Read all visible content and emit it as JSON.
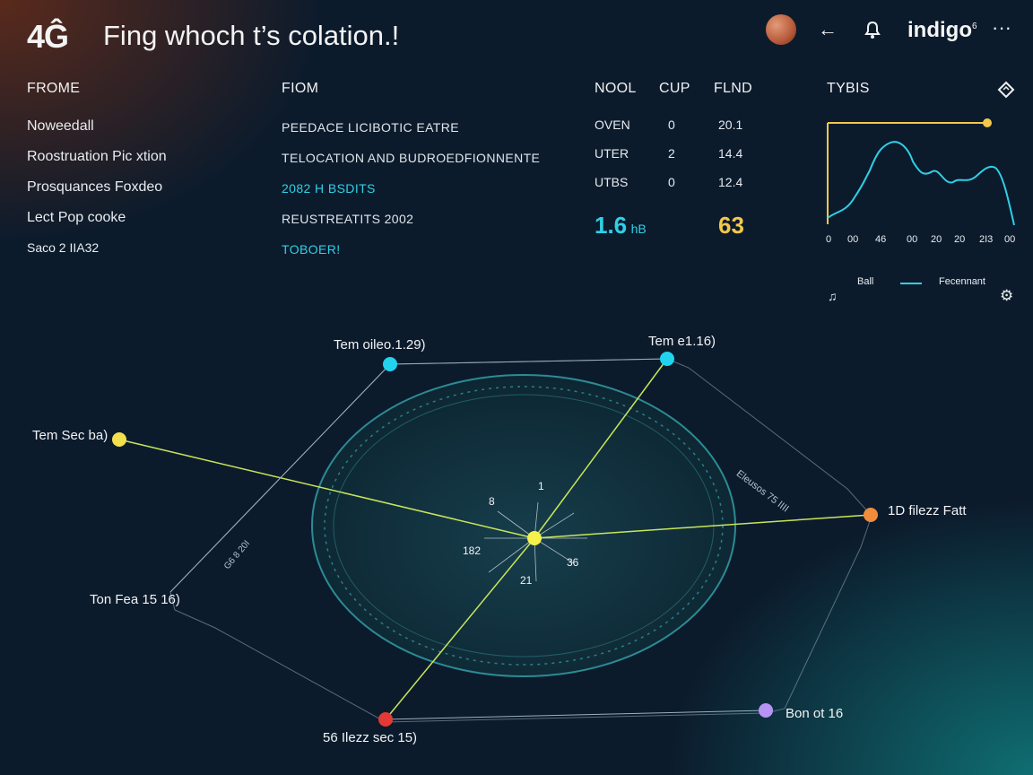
{
  "header": {
    "logo": "4Ĝ",
    "title": "Fing whoch t’s colation.!",
    "brand": "indigo",
    "brand_sup": "6",
    "back_icon": "back-arrow-icon",
    "bell_icon": "bell-icon",
    "more_icon": "more-icon",
    "more_label": "···"
  },
  "columns": {
    "frome": "FROME",
    "fiom": "FIOM",
    "nool": "NOOL",
    "cup": "CUP",
    "flnd": "FLND",
    "tybis": "TYBIS"
  },
  "left_list": [
    "Noweedall",
    "Roostruation  Pic xtion",
    "Prosquances Foxdeo",
    "Lect Pop cooke",
    "Saco 2 IIA32"
  ],
  "mid_list": [
    {
      "text": "PEEDACE LICIBOTIC EATRE",
      "accent": false
    },
    {
      "text": "TELOCATION AND BUDROEDFIONNENTE",
      "accent": false
    },
    {
      "text": "2082 H BSDITS",
      "accent": true
    },
    {
      "text": "REUSTREATITS 2002",
      "accent": false
    },
    {
      "text": "TOBOER!",
      "accent": true
    }
  ],
  "metrics": [
    {
      "name": "OVEN",
      "cup": "0",
      "flnd": "20.1"
    },
    {
      "name": "UTER",
      "cup": "2",
      "flnd": "14.4"
    },
    {
      "name": "UTBS",
      "cup": "0",
      "flnd": "12.4"
    }
  ],
  "big_left": "1.6",
  "big_left_unit": "hB",
  "big_right": "63",
  "sparkline": {
    "ticks": [
      "0",
      "00",
      "46",
      "00",
      "20",
      "20",
      "2I3",
      "00"
    ],
    "legend_left": "Ball",
    "legend_right": "Fecennant",
    "legend_icon": "music-note-icon",
    "settings_icon": "gear-icon",
    "diamond_icon": "diamond-icon",
    "line_color": "#2fd0e6",
    "marker_color": "#f2c84b"
  },
  "network": {
    "center_labels": [
      "8",
      "1",
      "182",
      "36",
      "21"
    ],
    "nodes": [
      {
        "label": "Tem oileo.1.29)",
        "color": "#22d3ee"
      },
      {
        "label": "Tem e1.16)",
        "color": "#22d3ee"
      },
      {
        "label": "Tem Sec ba)",
        "color": "#f4e04d"
      },
      {
        "label": "1D filezz Fatt",
        "color": "#f08c3a"
      },
      {
        "label": "Ton Fea 15 16)",
        "color": "#ffffff"
      },
      {
        "label": "56 Ilezz sec 15)",
        "color": "#e53935"
      },
      {
        "label": "Bon ot 16",
        "color": "#b794f4"
      }
    ],
    "side_texts": [
      "Eleusos 75 IIII",
      "G6 8 20I"
    ],
    "center_color": "#f4f14a"
  }
}
